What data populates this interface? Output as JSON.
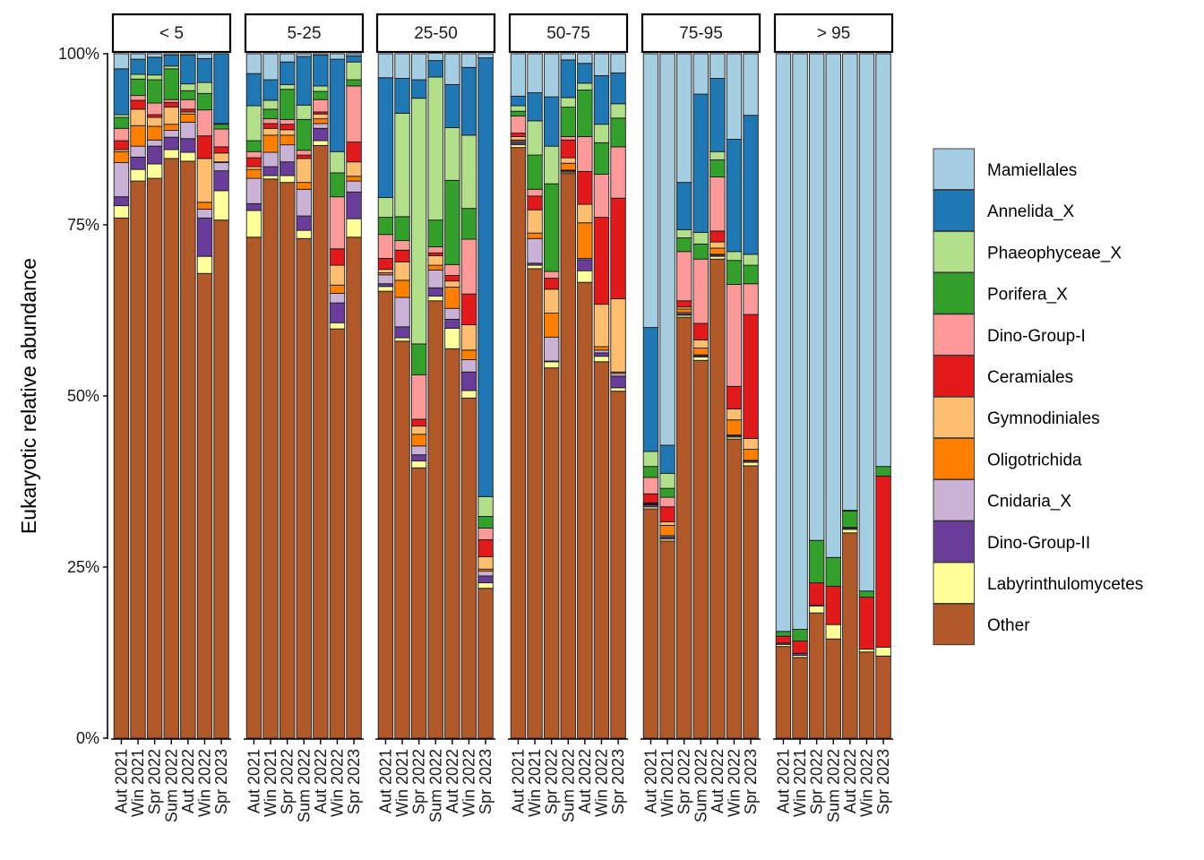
{
  "chart_data": {
    "type": "bar",
    "subtype": "stacked-percent-faceted",
    "title": "",
    "xlabel": "",
    "ylabel": "Eukaryotic relative abundance",
    "ylim": [
      0,
      100
    ],
    "y_ticks": [
      "0%",
      "25%",
      "50%",
      "75%",
      "100%"
    ],
    "y_tick_values": [
      0,
      25,
      50,
      75,
      100
    ],
    "grid": false,
    "legend_position": "right",
    "categories": [
      "Aut 2021",
      "Win 2021",
      "Spr 2022",
      "Sum 2022",
      "Aut 2022",
      "Win 2022",
      "Spr 2023"
    ],
    "series_order_bottom_to_top": [
      "Other",
      "Labyrinthulomycetes",
      "Dino-Group-II",
      "Cnidaria_X",
      "Oligotrichida",
      "Gymnodiniales",
      "Ceramiales",
      "Dino-Group-I",
      "Porifera_X",
      "Phaeophyceae_X",
      "Annelida_X",
      "Mamiellales"
    ],
    "legend": [
      {
        "name": "Mamiellales",
        "color": "#A6CEE3"
      },
      {
        "name": "Annelida_X",
        "color": "#1F78B4"
      },
      {
        "name": "Phaeophyceae_X",
        "color": "#B2DF8A"
      },
      {
        "name": "Porifera_X",
        "color": "#33A02C"
      },
      {
        "name": "Dino-Group-I",
        "color": "#FB9A99"
      },
      {
        "name": "Ceramiales",
        "color": "#E31A1C"
      },
      {
        "name": "Gymnodiniales",
        "color": "#FDBF6F"
      },
      {
        "name": "Oligotrichida",
        "color": "#FF7F00"
      },
      {
        "name": "Cnidaria_X",
        "color": "#CAB2D6"
      },
      {
        "name": "Dino-Group-II",
        "color": "#6A3D9A"
      },
      {
        "name": "Labyrinthulomycetes",
        "color": "#FFFF99"
      },
      {
        "name": "Other",
        "color": "#B15928"
      }
    ],
    "facets": [
      {
        "label": "< 5",
        "bars": [
          {
            "Other": 76.0,
            "Labyrinthulomycetes": 1.8,
            "Dino-Group-II": 1.3,
            "Cnidaria_X": 5.0,
            "Oligotrichida": 1.6,
            "Gymnodiniales": 0.3,
            "Ceramiales": 1.3,
            "Dino-Group-I": 1.8,
            "Porifera_X": 1.6,
            "Phaeophyceae_X": 0.4,
            "Annelida_X": 6.7,
            "Mamiellales": 2.2
          },
          {
            "Other": 81.4,
            "Labyrinthulomycetes": 1.7,
            "Dino-Group-II": 1.8,
            "Cnidaria_X": 1.6,
            "Oligotrichida": 3.0,
            "Gymnodiniales": 2.4,
            "Ceramiales": 1.3,
            "Dino-Group-I": 0.7,
            "Porifera_X": 2.4,
            "Phaeophyceae_X": 0.7,
            "Annelida_X": 2.2,
            "Mamiellales": 0.8
          },
          {
            "Other": 81.8,
            "Labyrinthulomycetes": 2.1,
            "Dino-Group-II": 2.6,
            "Cnidaria_X": 0.9,
            "Oligotrichida": 2.0,
            "Gymnodiniales": 1.3,
            "Ceramiales": 0.4,
            "Dino-Group-I": 1.7,
            "Porifera_X": 3.4,
            "Phaeophyceae_X": 0.7,
            "Annelida_X": 2.6,
            "Mamiellales": 0.5
          },
          {
            "Other": 84.7,
            "Labyrinthulomycetes": 1.3,
            "Dino-Group-II": 1.8,
            "Cnidaria_X": 1.0,
            "Oligotrichida": 0.9,
            "Gymnodiniales": 2.5,
            "Ceramiales": 0.7,
            "Dino-Group-I": 0.4,
            "Porifera_X": 4.5,
            "Phaeophyceae_X": 0.4,
            "Annelida_X": 1.6,
            "Mamiellales": 0.2
          },
          {
            "Other": 84.3,
            "Labyrinthulomycetes": 1.3,
            "Dino-Group-II": 2.0,
            "Cnidaria_X": 2.4,
            "Oligotrichida": 1.2,
            "Gymnodiniales": 0.3,
            "Ceramiales": 0.4,
            "Dino-Group-I": 1.4,
            "Porifera_X": 1.3,
            "Phaeophyceae_X": 1.0,
            "Annelida_X": 4.2,
            "Mamiellales": 0.2
          },
          {
            "Other": 67.9,
            "Labyrinthulomycetes": 2.5,
            "Dino-Group-II": 5.6,
            "Cnidaria_X": 1.3,
            "Oligotrichida": 1.0,
            "Gymnodiniales": 6.4,
            "Ceramiales": 3.3,
            "Dino-Group-I": 3.8,
            "Porifera_X": 2.4,
            "Phaeophyceae_X": 1.6,
            "Annelida_X": 3.5,
            "Mamiellales": 0.7
          },
          {
            "Other": 75.7,
            "Labyrinthulomycetes": 4.3,
            "Dino-Group-II": 2.9,
            "Cnidaria_X": 1.2,
            "Oligotrichida": 0.1,
            "Gymnodiniales": 1.3,
            "Ceramiales": 0.9,
            "Dino-Group-I": 2.6,
            "Porifera_X": 0.7,
            "Phaeophyceae_X": 0.1,
            "Annelida_X": 10.2,
            "Mamiellales": 0.0
          }
        ]
      },
      {
        "label": "5-25",
        "bars": [
          {
            "Other": 73.2,
            "Labyrinthulomycetes": 3.9,
            "Dino-Group-II": 1.0,
            "Cnidaria_X": 3.7,
            "Oligotrichida": 1.3,
            "Gymnodiniales": 0.4,
            "Ceramiales": 1.3,
            "Dino-Group-I": 0.9,
            "Porifera_X": 1.6,
            "Phaeophyceae_X": 5.1,
            "Annelida_X": 4.7,
            "Mamiellales": 2.9
          },
          {
            "Other": 81.7,
            "Labyrinthulomycetes": 0.5,
            "Dino-Group-II": 1.3,
            "Cnidaria_X": 2.1,
            "Oligotrichida": 2.5,
            "Gymnodiniales": 1.0,
            "Ceramiales": 0.7,
            "Dino-Group-I": 0.7,
            "Porifera_X": 1.4,
            "Phaeophyceae_X": 1.3,
            "Annelida_X": 3.0,
            "Mamiellales": 3.8
          },
          {
            "Other": 81.2,
            "Labyrinthulomycetes": 1.0,
            "Dino-Group-II": 2.0,
            "Cnidaria_X": 2.5,
            "Oligotrichida": 1.4,
            "Gymnodiniales": 0.8,
            "Ceramiales": 0.8,
            "Dino-Group-I": 0.7,
            "Porifera_X": 4.4,
            "Phaeophyceae_X": 0.7,
            "Annelida_X": 3.3,
            "Mamiellales": 1.2
          },
          {
            "Other": 73.0,
            "Labyrinthulomycetes": 1.2,
            "Dino-Group-II": 2.1,
            "Cnidaria_X": 3.9,
            "Oligotrichida": 1.0,
            "Gymnodiniales": 3.5,
            "Ceramiales": 0.5,
            "Dino-Group-I": 0.7,
            "Porifera_X": 4.5,
            "Phaeophyceae_X": 2.1,
            "Annelida_X": 7.1,
            "Mamiellales": 0.4
          },
          {
            "Other": 86.6,
            "Labyrinthulomycetes": 0.7,
            "Dino-Group-II": 1.8,
            "Cnidaria_X": 0.7,
            "Oligotrichida": 0.7,
            "Gymnodiniales": 0.7,
            "Ceramiales": 0.3,
            "Dino-Group-I": 1.8,
            "Porifera_X": 1.2,
            "Phaeophyceae_X": 0.8,
            "Annelida_X": 4.5,
            "Mamiellales": 0.2
          },
          {
            "Other": 59.8,
            "Labyrinthulomycetes": 0.9,
            "Dino-Group-II": 2.9,
            "Cnidaria_X": 1.4,
            "Oligotrichida": 1.2,
            "Gymnodiniales": 2.9,
            "Ceramiales": 2.4,
            "Dino-Group-I": 7.6,
            "Porifera_X": 3.5,
            "Phaeophyceae_X": 3.1,
            "Annelida_X": 13.5,
            "Mamiellales": 0.8
          },
          {
            "Other": 73.2,
            "Labyrinthulomycetes": 2.7,
            "Dino-Group-II": 3.9,
            "Cnidaria_X": 1.6,
            "Oligotrichida": 0.7,
            "Gymnodiniales": 2.1,
            "Ceramiales": 2.9,
            "Dino-Group-I": 8.2,
            "Porifera_X": 0.9,
            "Phaeophyceae_X": 2.6,
            "Annelida_X": 0.9,
            "Mamiellales": 0.3
          }
        ]
      },
      {
        "label": "25-50",
        "bars": [
          {
            "Other": 65.3,
            "Labyrinthulomycetes": 0.7,
            "Dino-Group-II": 0.4,
            "Cnidaria_X": 1.3,
            "Oligotrichida": 0.3,
            "Gymnodiniales": 0.5,
            "Ceramiales": 1.6,
            "Dino-Group-I": 3.5,
            "Porifera_X": 2.5,
            "Phaeophyceae_X": 2.9,
            "Annelida_X": 17.5,
            "Mamiellales": 3.5
          },
          {
            "Other": 58.0,
            "Labyrinthulomycetes": 0.5,
            "Dino-Group-II": 1.6,
            "Cnidaria_X": 4.3,
            "Oligotrichida": 2.5,
            "Gymnodiniales": 2.7,
            "Ceramiales": 1.7,
            "Dino-Group-I": 1.4,
            "Porifera_X": 3.5,
            "Phaeophyceae_X": 15.1,
            "Annelida_X": 5.1,
            "Mamiellales": 3.6
          },
          {
            "Other": 39.5,
            "Labyrinthulomycetes": 1.0,
            "Dino-Group-II": 0.9,
            "Cnidaria_X": 1.3,
            "Oligotrichida": 1.7,
            "Gymnodiniales": 1.2,
            "Ceramiales": 1.0,
            "Dino-Group-I": 6.5,
            "Porifera_X": 4.5,
            "Phaeophyceae_X": 35.9,
            "Annelida_X": 2.7,
            "Mamiellales": 3.8
          },
          {
            "Other": 63.9,
            "Labyrinthulomycetes": 0.7,
            "Dino-Group-II": 1.2,
            "Cnidaria_X": 2.6,
            "Oligotrichida": 0.7,
            "Gymnodiniales": 1.4,
            "Ceramiales": 0.4,
            "Dino-Group-I": 0.9,
            "Porifera_X": 3.9,
            "Phaeophyceae_X": 20.9,
            "Annelida_X": 2.4,
            "Mamiellales": 1.1
          },
          {
            "Other": 56.9,
            "Labyrinthulomycetes": 3.0,
            "Dino-Group-II": 1.3,
            "Cnidaria_X": 1.6,
            "Oligotrichida": 3.1,
            "Gymnodiniales": 0.9,
            "Ceramiales": 0.8,
            "Dino-Group-I": 1.6,
            "Porifera_X": 12.3,
            "Phaeophyceae_X": 7.7,
            "Annelida_X": 6.3,
            "Mamiellales": 4.5
          },
          {
            "Other": 49.7,
            "Labyrinthulomycetes": 1.1,
            "Dino-Group-II": 2.7,
            "Cnidaria_X": 1.8,
            "Oligotrichida": 1.4,
            "Gymnodiniales": 3.7,
            "Ceramiales": 4.5,
            "Dino-Group-I": 8.0,
            "Porifera_X": 4.5,
            "Phaeophyceae_X": 10.7,
            "Annelida_X": 9.9,
            "Mamiellales": 2.0
          },
          {
            "Other": 21.9,
            "Labyrinthulomycetes": 0.8,
            "Dino-Group-II": 1.0,
            "Cnidaria_X": 0.7,
            "Oligotrichida": 0.3,
            "Gymnodiniales": 1.8,
            "Ceramiales": 2.5,
            "Dino-Group-I": 1.7,
            "Porifera_X": 1.7,
            "Phaeophyceae_X": 2.9,
            "Annelida_X": 64.1,
            "Mamiellales": 0.6
          }
        ]
      },
      {
        "label": "50-75",
        "bars": [
          {
            "Other": 86.3,
            "Labyrinthulomycetes": 0.4,
            "Dino-Group-II": 0.3,
            "Cnidaria_X": 0.2,
            "Oligotrichida": 0.2,
            "Gymnodiniales": 0.5,
            "Ceramiales": 0.5,
            "Dino-Group-I": 2.5,
            "Porifera_X": 0.7,
            "Phaeophyceae_X": 0.8,
            "Annelida_X": 1.4,
            "Mamiellales": 6.2
          },
          {
            "Other": 68.6,
            "Labyrinthulomycetes": 0.5,
            "Dino-Group-II": 0.3,
            "Cnidaria_X": 3.6,
            "Oligotrichida": 0.8,
            "Gymnodiniales": 3.4,
            "Ceramiales": 2.0,
            "Dino-Group-I": 1.0,
            "Porifera_X": 5.0,
            "Phaeophyceae_X": 5.0,
            "Annelida_X": 4.1,
            "Mamiellales": 5.7
          },
          {
            "Other": 54.1,
            "Labyrinthulomycetes": 0.9,
            "Dino-Group-II": 0.1,
            "Cnidaria_X": 3.5,
            "Oligotrichida": 3.5,
            "Gymnodiniales": 3.5,
            "Ceramiales": 1.6,
            "Dino-Group-I": 1.0,
            "Porifera_X": 12.8,
            "Phaeophyceae_X": 5.5,
            "Annelida_X": 7.2,
            "Mamiellales": 6.3
          },
          {
            "Other": 82.5,
            "Labyrinthulomycetes": 0.2,
            "Dino-Group-II": 0.2,
            "Cnidaria_X": 0.1,
            "Oligotrichida": 1.0,
            "Gymnodiniales": 0.8,
            "Ceramiales": 2.6,
            "Dino-Group-I": 0.5,
            "Porifera_X": 4.3,
            "Phaeophyceae_X": 1.4,
            "Annelida_X": 5.5,
            "Mamiellales": 0.9
          },
          {
            "Other": 66.6,
            "Labyrinthulomycetes": 1.7,
            "Dino-Group-II": 1.6,
            "Cnidaria_X": 0.2,
            "Oligotrichida": 5.2,
            "Gymnodiniales": 2.7,
            "Ceramiales": 4.8,
            "Dino-Group-I": 5.1,
            "Porifera_X": 6.8,
            "Phaeophyceae_X": 1.0,
            "Annelida_X": 2.9,
            "Mamiellales": 1.4
          },
          {
            "Other": 55.0,
            "Labyrinthulomycetes": 0.8,
            "Dino-Group-II": 0.5,
            "Cnidaria_X": 0.4,
            "Oligotrichida": 0.5,
            "Gymnodiniales": 6.2,
            "Ceramiales": 12.7,
            "Dino-Group-I": 6.3,
            "Porifera_X": 4.6,
            "Phaeophyceae_X": 2.7,
            "Annelida_X": 7.1,
            "Mamiellales": 3.2
          },
          {
            "Other": 50.7,
            "Labyrinthulomycetes": 0.5,
            "Dino-Group-II": 1.7,
            "Cnidaria_X": 0.4,
            "Oligotrichida": 0.2,
            "Gymnodiniales": 10.7,
            "Ceramiales": 14.7,
            "Dino-Group-I": 7.5,
            "Porifera_X": 4.2,
            "Phaeophyceae_X": 2.1,
            "Annelida_X": 4.5,
            "Mamiellales": 2.8
          }
        ]
      },
      {
        "label": "75-95",
        "bars": [
          {
            "Other": 33.5,
            "Labyrinthulomycetes": 0.3,
            "Dino-Group-II": 0.3,
            "Cnidaria_X": 0.1,
            "Oligotrichida": 0.1,
            "Gymnodiniales": 0.1,
            "Ceramiales": 1.3,
            "Dino-Group-I": 2.4,
            "Porifera_X": 1.6,
            "Phaeophyceae_X": 2.2,
            "Annelida_X": 18.1,
            "Mamiellales": 40.0
          },
          {
            "Other": 28.8,
            "Labyrinthulomycetes": 0.3,
            "Dino-Group-II": 0.3,
            "Cnidaria_X": 0.2,
            "Oligotrichida": 1.5,
            "Gymnodiniales": 0.5,
            "Ceramiales": 2.2,
            "Dino-Group-I": 1.4,
            "Porifera_X": 1.3,
            "Phaeophyceae_X": 2.2,
            "Annelida_X": 4.1,
            "Mamiellales": 57.2
          },
          {
            "Other": 61.5,
            "Labyrinthulomycetes": 0.3,
            "Dino-Group-II": 0.2,
            "Cnidaria_X": 0.2,
            "Oligotrichida": 0.5,
            "Gymnodiniales": 0.3,
            "Ceramiales": 0.9,
            "Dino-Group-I": 7.2,
            "Porifera_X": 2.0,
            "Phaeophyceae_X": 1.2,
            "Annelida_X": 6.9,
            "Mamiellales": 18.8
          },
          {
            "Other": 55.2,
            "Labyrinthulomycetes": 0.5,
            "Dino-Group-II": 0.2,
            "Cnidaria_X": 0.1,
            "Oligotrichida": 1.0,
            "Gymnodiniales": 1.2,
            "Ceramiales": 2.4,
            "Dino-Group-I": 9.4,
            "Porifera_X": 2.2,
            "Phaeophyceae_X": 1.7,
            "Annelida_X": 20.2,
            "Mamiellales": 5.9
          },
          {
            "Other": 70.0,
            "Labyrinthulomycetes": 0.4,
            "Dino-Group-II": 0.2,
            "Cnidaria_X": 0.1,
            "Oligotrichida": 0.9,
            "Gymnodiniales": 0.9,
            "Ceramiales": 1.6,
            "Dino-Group-I": 7.9,
            "Porifera_X": 2.5,
            "Phaeophyceae_X": 1.2,
            "Annelida_X": 10.7,
            "Mamiellales": 3.6
          },
          {
            "Other": 43.7,
            "Labyrinthulomycetes": 0.3,
            "Dino-Group-II": 0.2,
            "Cnidaria_X": 0.1,
            "Oligotrichida": 2.2,
            "Gymnodiniales": 1.6,
            "Ceramiales": 3.3,
            "Dino-Group-I": 14.9,
            "Porifera_X": 3.5,
            "Phaeophyceae_X": 1.3,
            "Annelida_X": 16.4,
            "Mamiellales": 12.5
          },
          {
            "Other": 39.8,
            "Labyrinthulomycetes": 0.5,
            "Dino-Group-II": 0.2,
            "Cnidaria_X": 0.1,
            "Oligotrichida": 1.6,
            "Gymnodiniales": 1.6,
            "Ceramiales": 18.1,
            "Dino-Group-I": 4.5,
            "Porifera_X": 2.7,
            "Phaeophyceae_X": 1.6,
            "Annelida_X": 20.3,
            "Mamiellales": 9.0
          }
        ]
      },
      {
        "label": "> 95",
        "bars": [
          {
            "Other": 13.4,
            "Labyrinthulomycetes": 0.3,
            "Dino-Group-II": 0.2,
            "Cnidaria_X": 0.0,
            "Oligotrichida": 0.0,
            "Gymnodiniales": 0.0,
            "Ceramiales": 1.0,
            "Dino-Group-I": 0.0,
            "Porifera_X": 0.7,
            "Phaeophyceae_X": 0.0,
            "Annelida_X": 0.0,
            "Mamiellales": 84.4
          },
          {
            "Other": 11.8,
            "Labyrinthulomycetes": 0.3,
            "Dino-Group-II": 0.3,
            "Cnidaria_X": 0.0,
            "Oligotrichida": 0.0,
            "Gymnodiniales": 0.0,
            "Ceramiales": 1.8,
            "Dino-Group-I": 0.0,
            "Porifera_X": 1.7,
            "Phaeophyceae_X": 0.0,
            "Annelida_X": 0.0,
            "Mamiellales": 84.1
          },
          {
            "Other": 18.3,
            "Labyrinthulomycetes": 1.0,
            "Dino-Group-II": 0.1,
            "Cnidaria_X": 0.0,
            "Oligotrichida": 0.0,
            "Gymnodiniales": 0.0,
            "Ceramiales": 3.3,
            "Dino-Group-I": 0.0,
            "Porifera_X": 6.2,
            "Phaeophyceae_X": 0.0,
            "Annelida_X": 0.0,
            "Mamiellales": 71.1
          },
          {
            "Other": 14.5,
            "Labyrinthulomycetes": 2.1,
            "Dino-Group-II": 0.0,
            "Cnidaria_X": 0.0,
            "Oligotrichida": 0.0,
            "Gymnodiniales": 0.0,
            "Ceramiales": 5.6,
            "Dino-Group-I": 0.0,
            "Porifera_X": 4.2,
            "Phaeophyceae_X": 0.0,
            "Annelida_X": 0.0,
            "Mamiellales": 73.6
          },
          {
            "Other": 30.0,
            "Labyrinthulomycetes": 0.5,
            "Dino-Group-II": 0.2,
            "Cnidaria_X": 0.0,
            "Oligotrichida": 0.0,
            "Gymnodiniales": 0.0,
            "Ceramiales": 0.1,
            "Dino-Group-I": 0.0,
            "Porifera_X": 2.4,
            "Phaeophyceae_X": 0.1,
            "Annelida_X": 0.0,
            "Mamiellales": 66.7
          },
          {
            "Other": 12.6,
            "Labyrinthulomycetes": 0.4,
            "Dino-Group-II": 0.0,
            "Cnidaria_X": 0.0,
            "Oligotrichida": 0.0,
            "Gymnodiniales": 0.0,
            "Ceramiales": 7.6,
            "Dino-Group-I": 0.0,
            "Porifera_X": 0.9,
            "Phaeophyceae_X": 0.0,
            "Annelida_X": 0.0,
            "Mamiellales": 78.5
          },
          {
            "Other": 12.0,
            "Labyrinthulomycetes": 1.3,
            "Dino-Group-II": 0.0,
            "Cnidaria_X": 0.0,
            "Oligotrichida": 0.0,
            "Gymnodiniales": 0.0,
            "Ceramiales": 25.0,
            "Dino-Group-I": 0.0,
            "Porifera_X": 1.4,
            "Phaeophyceae_X": 0.0,
            "Annelida_X": 0.0,
            "Mamiellales": 60.3
          }
        ]
      }
    ]
  }
}
